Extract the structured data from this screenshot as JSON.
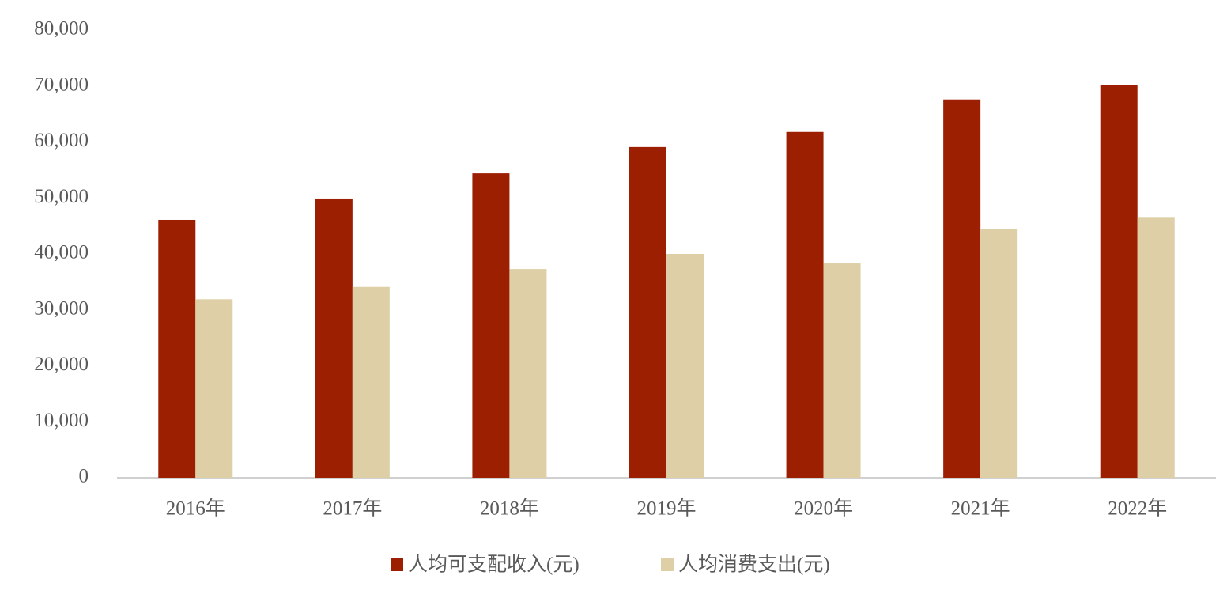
{
  "chart_data": {
    "type": "bar",
    "categories": [
      "2016年",
      "2017年",
      "2018年",
      "2019年",
      "2020年",
      "2021年",
      "2022年"
    ],
    "series": [
      {
        "name": "人均可支配收入(元)",
        "color": "#9c1f02",
        "values": [
          46080,
          49900,
          54400,
          59100,
          61800,
          67600,
          70200
        ]
      },
      {
        "name": "人均消费支出(元)",
        "color": "#dfcfa7",
        "values": [
          31900,
          34100,
          37300,
          40000,
          38300,
          44400,
          46600
        ]
      }
    ],
    "ylim": [
      0,
      80000
    ],
    "yticks": [
      0,
      {
        "value": 10000,
        "label": "10,000"
      },
      {
        "value": 20000,
        "label": "20,000"
      },
      {
        "value": 30000,
        "label": "30,000"
      },
      {
        "value": 40000,
        "label": "40,000"
      },
      {
        "value": 50000,
        "label": "50,000"
      },
      {
        "value": 60000,
        "label": "60,000"
      },
      {
        "value": 70000,
        "label": "70,000"
      },
      {
        "value": 80000,
        "label": "80,000"
      }
    ],
    "grid": false,
    "legend": "bottom"
  }
}
